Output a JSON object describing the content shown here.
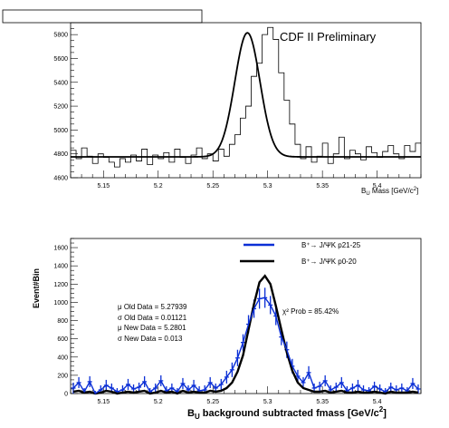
{
  "chart_data": [
    {
      "type": "line",
      "panel": "top",
      "annotation": "CDF II Preliminary",
      "xlabel_main": "B",
      "xlabel_sub": "U",
      "xlabel_rest": " Mass [GeV/c",
      "xlabel_sup": "2",
      "xlabel_end": "]",
      "xlim": [
        5.12,
        5.44
      ],
      "ylim": [
        4600,
        5900
      ],
      "xticks": [
        "5.15",
        "5.2",
        "5.25",
        "5.3",
        "5.35",
        "5.4"
      ],
      "xtick_values": [
        5.15,
        5.2,
        5.25,
        5.3,
        5.35,
        5.4
      ],
      "yticks": [
        "4600",
        "4800",
        "5000",
        "5200",
        "5400",
        "5600",
        "5800"
      ],
      "ytick_values": [
        4600,
        4800,
        5000,
        5200,
        5400,
        5600,
        5800
      ],
      "histogram": {
        "x_start": 5.12,
        "bin_width": 0.005,
        "values": [
          4830,
          4760,
          4850,
          4780,
          4720,
          4800,
          4770,
          4730,
          4690,
          4760,
          4730,
          4790,
          4740,
          4840,
          4710,
          4790,
          4760,
          4810,
          4730,
          4840,
          4770,
          4720,
          4790,
          4850,
          4760,
          4800,
          4740,
          4840,
          4780,
          4880,
          4960,
          5100,
          5200,
          5450,
          5560,
          5800,
          5860,
          5760,
          5480,
          5250,
          5050,
          4880,
          4760,
          4860,
          4730,
          4780,
          4890,
          4720,
          4800,
          4940,
          4760,
          4830,
          4800,
          4750,
          4860,
          4810,
          4770,
          4820,
          4870,
          4800,
          4760,
          4870,
          4820,
          4890
        ]
      },
      "fit": {
        "baseline": 4775,
        "slope": 0.0,
        "amplitude": 1040,
        "mean": 5.2815,
        "sigma": 0.0115
      }
    },
    {
      "type": "line",
      "panel": "bottom",
      "ylabel": "Event#Bin",
      "xlabel_main": "B",
      "xlabel_sub": "U",
      "xlabel_rest": " background subtracted fmass [GeV/c",
      "xlabel_sup": "2",
      "xlabel_end": "]",
      "xlim": [
        5.12,
        5.44
      ],
      "ylim": [
        0,
        1700
      ],
      "xticks": [
        "5.15",
        "5.2",
        "5.25",
        "5.3",
        "5.35",
        "5.4"
      ],
      "xtick_values": [
        5.15,
        5.2,
        5.25,
        5.3,
        5.35,
        5.4
      ],
      "yticks": [
        "0",
        "200",
        "400",
        "600",
        "800",
        "1000",
        "1200",
        "1400",
        "1600"
      ],
      "ytick_values": [
        0,
        200,
        400,
        600,
        800,
        1000,
        1200,
        1400,
        1600
      ],
      "legend": [
        {
          "label": "B⁺→ J/ΨK p21-25",
          "color": "#0b2fd6"
        },
        {
          "label": "B⁺→ J/ΨK p0-20",
          "color": "#000000"
        }
      ],
      "chi2_text": "χ² Prob = 85.42%",
      "stats": [
        "μ Old Data = 5.27939",
        "σ Old Data =  0.01121",
        "μ New Data = 5.2801",
        "σ New Data =  0.013"
      ],
      "series": [
        {
          "name": "B⁺→ J/ΨK p21-25",
          "color": "#0b2fd6",
          "x_start": 5.1225,
          "bin_width": 0.005,
          "values": [
            60,
            120,
            20,
            130,
            0,
            40,
            90,
            60,
            20,
            40,
            100,
            50,
            70,
            130,
            20,
            60,
            140,
            30,
            60,
            20,
            110,
            40,
            90,
            30,
            40,
            120,
            60,
            100,
            180,
            260,
            390,
            560,
            760,
            930,
            1040,
            1050,
            970,
            850,
            620,
            480,
            300,
            190,
            120,
            230,
            60,
            80,
            140,
            40,
            70,
            120,
            30,
            60,
            90,
            40,
            30,
            80,
            50,
            20,
            70,
            40,
            60,
            30,
            110,
            50
          ],
          "errors": [
            60,
            60,
            40,
            60,
            30,
            50,
            60,
            50,
            40,
            50,
            60,
            50,
            50,
            60,
            40,
            50,
            60,
            50,
            50,
            40,
            60,
            50,
            60,
            50,
            50,
            60,
            50,
            60,
            70,
            80,
            90,
            90,
            100,
            100,
            110,
            110,
            100,
            100,
            90,
            90,
            80,
            70,
            60,
            70,
            50,
            50,
            60,
            50,
            50,
            60,
            50,
            50,
            60,
            50,
            40,
            50,
            50,
            40,
            50,
            50,
            50,
            40,
            60,
            50
          ]
        },
        {
          "name": "B⁺→ J/ΨK p0-20",
          "color": "#000000",
          "x_start": 5.1225,
          "bin_width": 0.005,
          "values": [
            20,
            30,
            10,
            20,
            0,
            10,
            30,
            20,
            0,
            10,
            20,
            10,
            20,
            30,
            0,
            10,
            30,
            10,
            20,
            0,
            30,
            10,
            20,
            10,
            10,
            30,
            20,
            30,
            60,
            120,
            240,
            420,
            700,
            980,
            1220,
            1290,
            1200,
            960,
            700,
            450,
            250,
            120,
            60,
            40,
            20,
            20,
            30,
            10,
            20,
            30,
            10,
            10,
            20,
            10,
            10,
            20,
            10,
            0,
            20,
            10,
            10,
            10,
            20,
            10
          ]
        }
      ]
    }
  ]
}
